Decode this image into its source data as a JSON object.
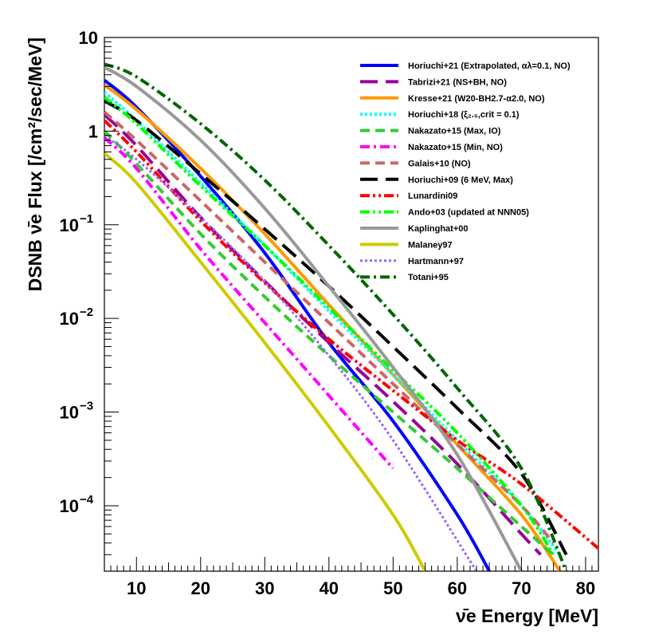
{
  "chart_data": {
    "type": "line",
    "title": "",
    "xlabel": "ν̄e Energy [MeV]",
    "ylabel": "DSNB ν̄e Flux [/cm²/sec/MeV]",
    "xlim": [
      5,
      82
    ],
    "ylim": [
      2e-05,
      10
    ],
    "y_scale": "log",
    "grid": false,
    "legend_position": "top-right",
    "x_ticks": [
      10,
      20,
      30,
      40,
      50,
      60,
      70,
      80
    ],
    "y_ticks": [
      {
        "value": 10,
        "label": "10"
      },
      {
        "value": 1,
        "label": "1"
      },
      {
        "value": 0.1,
        "base": "10",
        "exp": "−1"
      },
      {
        "value": 0.01,
        "base": "10",
        "exp": "−2"
      },
      {
        "value": 0.001,
        "base": "10",
        "exp": "−3"
      },
      {
        "value": 0.0001,
        "base": "10",
        "exp": "−4"
      }
    ],
    "series": [
      {
        "name": "Horiuchi+21 (Extrapolated,  αλ=0.1, NO)",
        "color": "#0000ff",
        "dash": "solid",
        "width": 4,
        "x": [
          5,
          10,
          20,
          30,
          40,
          50,
          60,
          65
        ],
        "y": [
          3.5,
          1.8,
          0.33,
          0.05,
          0.0055,
          0.0008,
          8e-05,
          2e-05
        ]
      },
      {
        "name": "Tabrizi+21 (NS+BH, NO)",
        "color": "#990099",
        "dash": "longdash",
        "width": 4,
        "x": [
          5,
          10,
          20,
          30,
          40,
          50,
          60,
          70,
          73
        ],
        "y": [
          1.5,
          0.7,
          0.12,
          0.025,
          0.0055,
          0.0013,
          0.00028,
          5e-05,
          3e-05
        ]
      },
      {
        "name": "Kresse+21 (W20-BH2.7-α2.0, NO)",
        "color": "#ff9900",
        "dash": "solid",
        "width": 4,
        "x": [
          5,
          10,
          20,
          30,
          40,
          50,
          60,
          70,
          76
        ],
        "y": [
          3.1,
          1.7,
          0.4,
          0.08,
          0.014,
          0.0025,
          0.00045,
          8e-05,
          2e-05
        ]
      },
      {
        "name": "Horiuchi+18 (ξ₂.₅,crit = 0.1)",
        "color": "#00ffff",
        "dash": "dotted",
        "width": 4,
        "x": [
          5,
          10,
          20,
          30,
          40,
          50,
          60,
          70,
          76
        ],
        "y": [
          2.6,
          1.3,
          0.28,
          0.06,
          0.012,
          0.0025,
          0.0005,
          0.0001,
          3e-05
        ]
      },
      {
        "name": "Nakazato+15 (Max, IO)",
        "color": "#33cc33",
        "dash": "dashed",
        "width": 4,
        "x": [
          5,
          10,
          20,
          30,
          40,
          50,
          60,
          70,
          75
        ],
        "y": [
          1.0,
          0.45,
          0.08,
          0.017,
          0.004,
          0.001,
          0.00025,
          6e-05,
          3e-05
        ]
      },
      {
        "name": "Nakazato+15 (Min, NO)",
        "color": "#ff00ff",
        "dash": "dashdot",
        "width": 4,
        "x": [
          5,
          10,
          20,
          30,
          40,
          50
        ],
        "y": [
          0.85,
          0.4,
          0.055,
          0.009,
          0.0015,
          0.00025
        ]
      },
      {
        "name": "Galais+10 (NO)",
        "color": "#cc6666",
        "dash": "dashed",
        "width": 4,
        "x": [
          5,
          10,
          20,
          30,
          40,
          50,
          60,
          70,
          75
        ],
        "y": [
          1.6,
          0.8,
          0.18,
          0.04,
          0.009,
          0.002,
          0.00045,
          0.0001,
          4e-05
        ]
      },
      {
        "name": "Horiuchi+09 (6 MeV, Max)",
        "color": "#000000",
        "dash": "longdash",
        "width": 4,
        "x": [
          5,
          10,
          20,
          30,
          40,
          50,
          60,
          70,
          77
        ],
        "y": [
          2.1,
          1.3,
          0.35,
          0.09,
          0.022,
          0.005,
          0.0011,
          0.00022,
          3e-05
        ]
      },
      {
        "name": "Lunardini09",
        "color": "#ff0000",
        "dash": "dashdotdot",
        "width": 4,
        "x": [
          5,
          10,
          20,
          30,
          40,
          50,
          60,
          70,
          82
        ],
        "y": [
          1.3,
          0.6,
          0.11,
          0.024,
          0.006,
          0.0017,
          0.0005,
          0.00017,
          3.5e-05
        ]
      },
      {
        "name": "Ando+03 (updated at NNN05)",
        "color": "#00ff00",
        "dash": "dashdotdot",
        "width": 4,
        "x": [
          5,
          10,
          20,
          30,
          40,
          50,
          60,
          70,
          75
        ],
        "y": [
          2.3,
          1.2,
          0.26,
          0.06,
          0.013,
          0.0028,
          0.0006,
          0.0001,
          3e-05
        ]
      },
      {
        "name": "Kaplinghat+00",
        "color": "#999999",
        "dash": "solid",
        "width": 4,
        "x": [
          5,
          10,
          20,
          30,
          40,
          50,
          60,
          70
        ],
        "y": [
          4.8,
          3.0,
          0.8,
          0.15,
          0.022,
          0.003,
          0.00035,
          2e-05
        ]
      },
      {
        "name": "Malaney97",
        "color": "#cccc00",
        "dash": "solid",
        "width": 4,
        "x": [
          5,
          10,
          20,
          30,
          40,
          50,
          55
        ],
        "y": [
          0.58,
          0.28,
          0.04,
          0.0055,
          0.0007,
          8e-05,
          2e-05
        ]
      },
      {
        "name": "Hartmann+97",
        "color": "#9966ff",
        "dash": "dotted",
        "width": 3,
        "x": [
          5,
          10,
          20,
          30,
          40,
          50,
          63
        ],
        "y": [
          0.9,
          0.5,
          0.12,
          0.025,
          0.004,
          0.0005,
          2e-05
        ]
      },
      {
        "name": "Totani+95",
        "color": "#006600",
        "dash": "dashdot",
        "width": 4,
        "x": [
          5,
          10,
          20,
          30,
          40,
          50,
          60,
          70,
          77
        ],
        "y": [
          5.2,
          3.8,
          1.2,
          0.3,
          0.06,
          0.011,
          0.0018,
          0.00025,
          2e-05
        ]
      }
    ]
  }
}
